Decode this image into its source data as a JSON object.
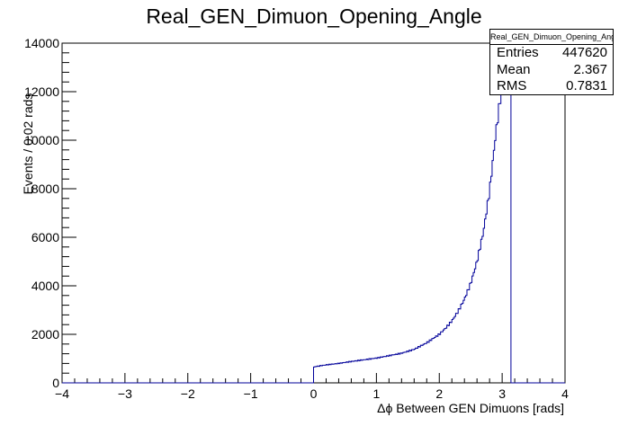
{
  "chart_data": {
    "type": "histogram",
    "title": "Real_GEN_Dimuon_Opening_Angle",
    "xlabel": "Δϕ Between GEN Dimuons [rads]",
    "ylabel": "Events / 0.02 rads",
    "xlim": [
      -4,
      4
    ],
    "ylim": [
      0,
      14000
    ],
    "x_ticks": [
      "−4",
      "−3",
      "−2",
      "−1",
      "0",
      "1",
      "2",
      "3",
      "4"
    ],
    "y_ticks": [
      "0",
      "2000",
      "4000",
      "6000",
      "8000",
      "10000",
      "12000",
      "14000"
    ],
    "bin_width": 0.02,
    "grid": false,
    "series": [
      {
        "color": "#000099",
        "points": [
          [
            0.0,
            650
          ],
          [
            0.1,
            700
          ],
          [
            0.2,
            740
          ],
          [
            0.4,
            800
          ],
          [
            0.6,
            880
          ],
          [
            0.8,
            950
          ],
          [
            1.0,
            1020
          ],
          [
            1.2,
            1120
          ],
          [
            1.4,
            1220
          ],
          [
            1.6,
            1380
          ],
          [
            1.8,
            1650
          ],
          [
            2.0,
            2000
          ],
          [
            2.1,
            2250
          ],
          [
            2.2,
            2550
          ],
          [
            2.3,
            2950
          ],
          [
            2.4,
            3450
          ],
          [
            2.5,
            4100
          ],
          [
            2.6,
            5000
          ],
          [
            2.7,
            6200
          ],
          [
            2.8,
            7900
          ],
          [
            2.9,
            10300
          ],
          [
            3.0,
            12300
          ],
          [
            3.05,
            13700
          ],
          [
            3.1,
            14200
          ],
          [
            3.14,
            14500
          ]
        ]
      }
    ],
    "stats": {
      "name": "Real_GEN_Dimuon_Opening_Angle",
      "entries_label": "Entries",
      "entries": "447620",
      "mean_label": "Mean",
      "mean": "2.367",
      "rms_label": "RMS",
      "rms": "0.7831"
    }
  }
}
